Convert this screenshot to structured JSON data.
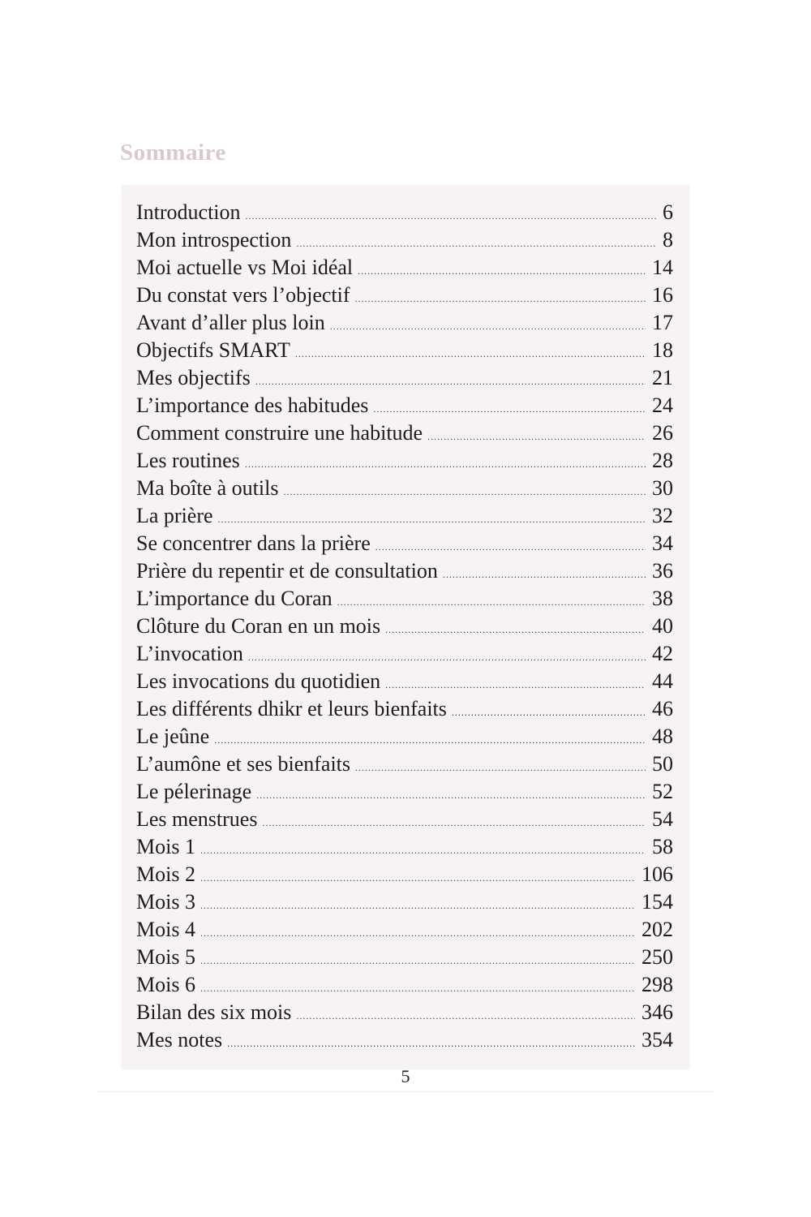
{
  "title": "Sommaire",
  "entries": [
    {
      "label": "Introduction",
      "page": "6"
    },
    {
      "label": "Mon introspection",
      "page": "8"
    },
    {
      "label": "Moi actuelle vs Moi idéal",
      "page": "14"
    },
    {
      "label": "Du constat vers l’objectif",
      "page": "16"
    },
    {
      "label": "Avant d’aller plus loin",
      "page": "17"
    },
    {
      "label": "Objectifs SMART",
      "page": "18"
    },
    {
      "label": "Mes objectifs",
      "page": "21"
    },
    {
      "label": "L’importance des habitudes",
      "page": "24"
    },
    {
      "label": "Comment construire une habitude",
      "page": "26"
    },
    {
      "label": "Les routines",
      "page": "28"
    },
    {
      "label": "Ma boîte à outils",
      "page": "30"
    },
    {
      "label": "La prière",
      "page": "32"
    },
    {
      "label": "Se concentrer dans la prière",
      "page": "34"
    },
    {
      "label": "Prière du repentir et de consultation",
      "page": "36"
    },
    {
      "label": "L’importance du Coran",
      "page": "38"
    },
    {
      "label": "Clôture du Coran en un mois",
      "page": "40"
    },
    {
      "label": "L’invocation",
      "page": "42"
    },
    {
      "label": "Les invocations du quotidien",
      "page": "44"
    },
    {
      "label": "Les différents dhikr et leurs bienfaits",
      "page": "46"
    },
    {
      "label": "Le jeûne",
      "page": "48"
    },
    {
      "label": "L’aumône et ses bienfaits",
      "page": "50"
    },
    {
      "label": "Le pélerinage",
      "page": "52"
    },
    {
      "label": "Les menstrues",
      "page": "54"
    },
    {
      "label": "Mois 1",
      "page": "58"
    },
    {
      "label": "Mois 2",
      "page": "106"
    },
    {
      "label": "Mois 3",
      "page": "154"
    },
    {
      "label": "Mois 4",
      "page": "202"
    },
    {
      "label": "Mois 5",
      "page": "250"
    },
    {
      "label": "Mois 6",
      "page": "298"
    },
    {
      "label": "Bilan des six mois",
      "page": "346"
    },
    {
      "label": "Mes notes",
      "page": "354"
    }
  ],
  "page_number": "5"
}
